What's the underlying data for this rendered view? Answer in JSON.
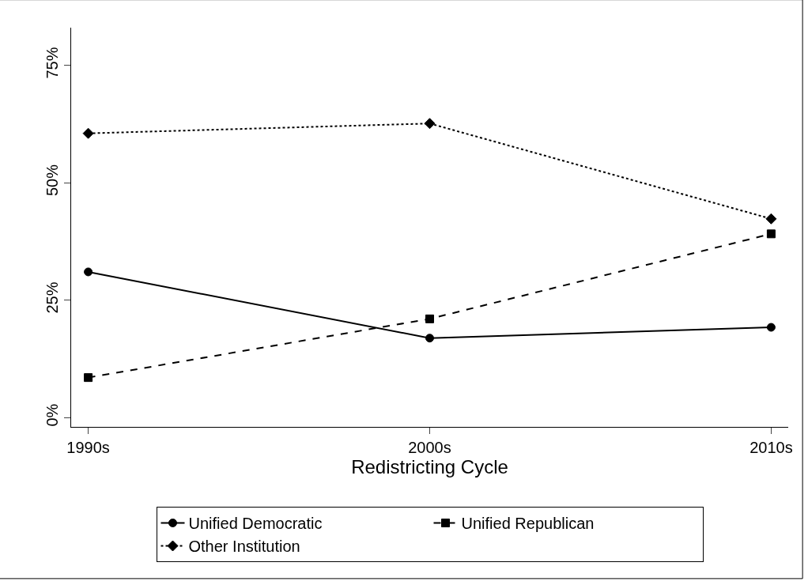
{
  "chart_data": {
    "type": "line",
    "xlabel": "Redistricting Cycle",
    "categories": [
      "1990s",
      "2000s",
      "2010s"
    ],
    "series": [
      {
        "name": "Unified Democratic",
        "color": "#000000",
        "values": [
          31.0,
          16.9,
          19.2
        ],
        "marker": "circle",
        "line_style": "solid"
      },
      {
        "name": "Unified Republican",
        "color": "#000000",
        "values": [
          8.5,
          21.0,
          39.1
        ],
        "marker": "square",
        "line_style": "dashed"
      },
      {
        "name": "Other Institution",
        "color": "#000000",
        "values": [
          60.5,
          62.6,
          42.3
        ],
        "marker": "diamond",
        "line_style": "dotted"
      }
    ],
    "ylim": [
      -2,
      83
    ],
    "yticks": [
      {
        "value": 0,
        "label": "0%"
      },
      {
        "value": 25,
        "label": "25%"
      },
      {
        "value": 50,
        "label": "50%"
      },
      {
        "value": 75,
        "label": "75%"
      }
    ],
    "legend": "bottom"
  }
}
